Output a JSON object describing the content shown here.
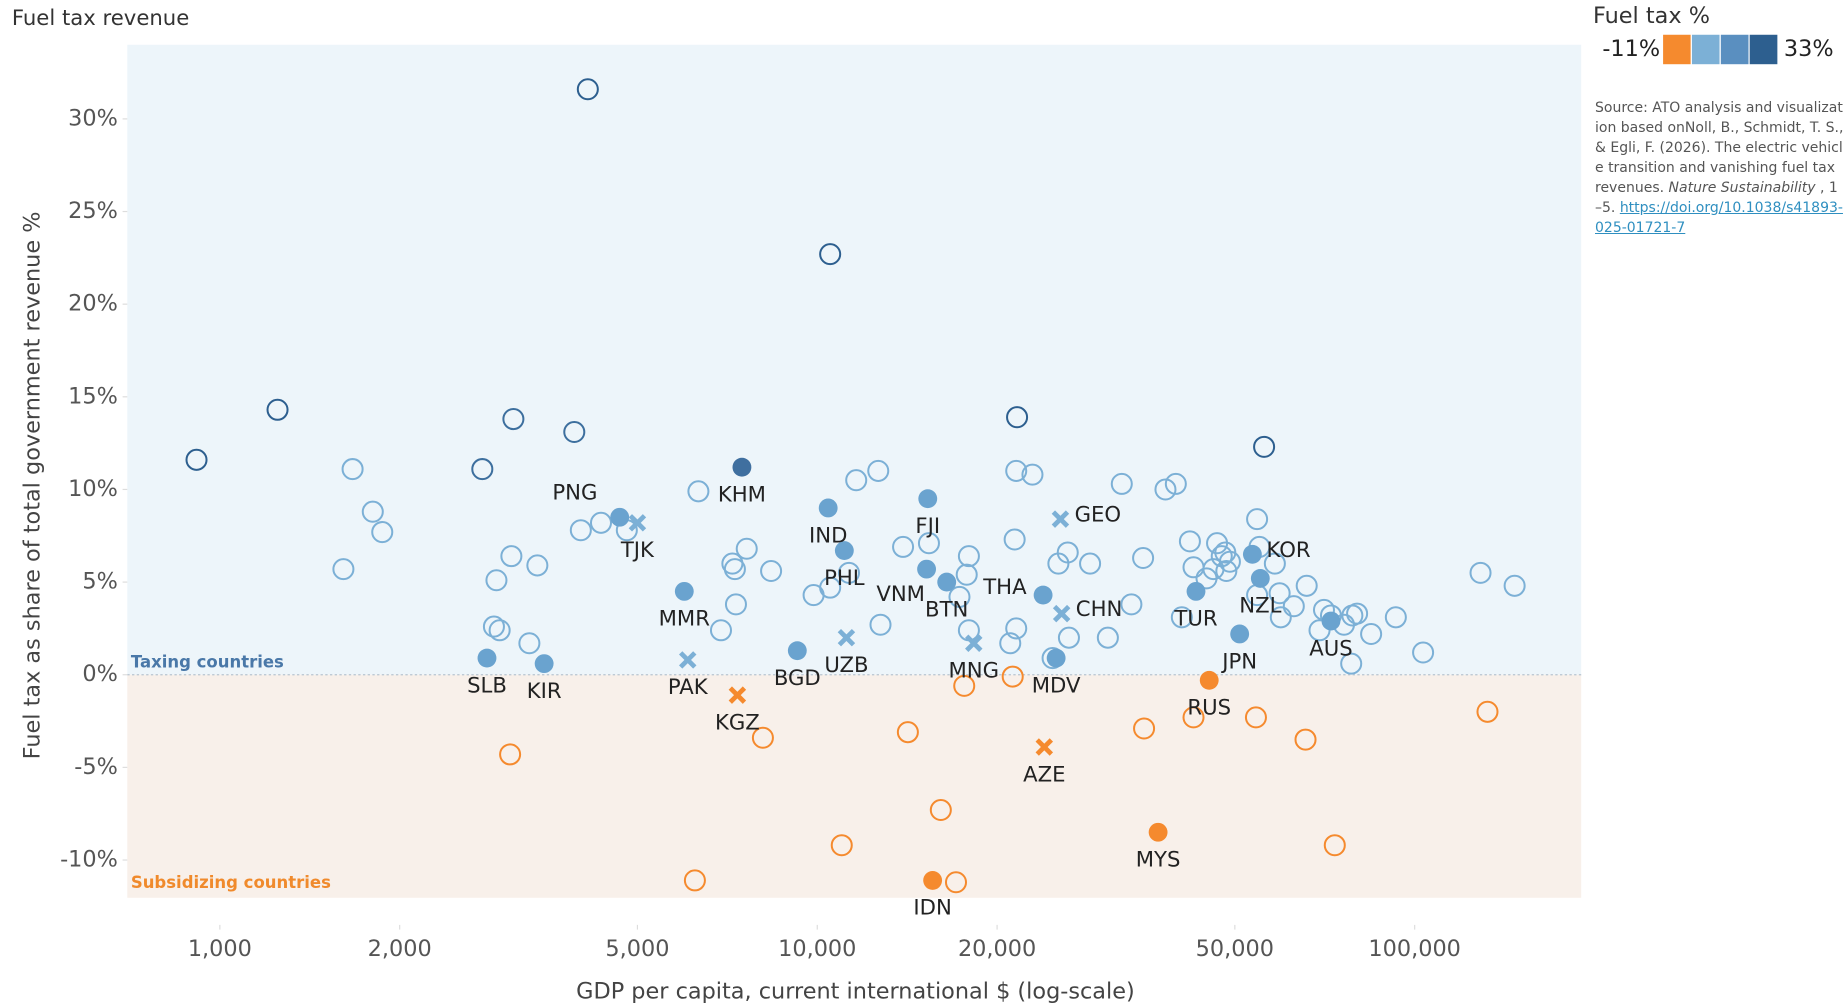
{
  "chart_data": {
    "type": "scatter",
    "title": "Fuel tax revenue",
    "x_label": "GDP per capita, current international $ (log-scale)",
    "y_label": "Fuel tax as share of total government revenue %",
    "xlog": true,
    "xlim": [
      700,
      190000
    ],
    "ylim": [
      -13.5,
      34
    ],
    "xticks": [
      {
        "value": 1000,
        "label": "1,000"
      },
      {
        "value": 2000,
        "label": "2,000"
      },
      {
        "value": 5000,
        "label": "5,000"
      },
      {
        "value": 10000,
        "label": "10,000"
      },
      {
        "value": 20000,
        "label": "20,000"
      },
      {
        "value": 50000,
        "label": "50,000"
      },
      {
        "value": 100000,
        "label": "100,000"
      }
    ],
    "yticks": [
      {
        "value": -10,
        "label": "-10%"
      },
      {
        "value": -5,
        "label": "-5%"
      },
      {
        "value": 0,
        "label": "0%"
      },
      {
        "value": 5,
        "label": "5%"
      },
      {
        "value": 10,
        "label": "10%"
      },
      {
        "value": 15,
        "label": "15%"
      },
      {
        "value": 20,
        "label": "20%"
      },
      {
        "value": 25,
        "label": "25%"
      },
      {
        "value": 30,
        "label": "30%"
      }
    ],
    "annotations": {
      "taxing": "Taxing countries",
      "subsidizing": "Subsidizing countries"
    },
    "region_colors": {
      "taxing": "#edf5fa",
      "subsidizing": "#f8f0ea"
    },
    "color_legend": {
      "title": "Fuel tax %",
      "min": {
        "value": -11,
        "label": "-11%"
      },
      "max": {
        "value": 33,
        "label": "33%"
      },
      "colors": [
        "#f58a2e",
        "#7cb0d6",
        "#5a8fc0",
        "#2d5f8f"
      ]
    },
    "points": [
      {
        "x": 914,
        "y": 11.6,
        "color": "#2d5f8f",
        "marker": "open"
      },
      {
        "x": 1249,
        "y": 14.3,
        "color": "#2d5f8f",
        "marker": "open"
      },
      {
        "x": 4130,
        "y": 31.6,
        "color": "#2d5f8f",
        "marker": "open"
      },
      {
        "x": 10510,
        "y": 22.7,
        "color": "#2d5f8f",
        "marker": "open"
      },
      {
        "x": 21600,
        "y": 13.9,
        "color": "#2d5f8f",
        "marker": "open"
      },
      {
        "x": 55970,
        "y": 12.3,
        "color": "#2d5f8f",
        "marker": "open"
      },
      {
        "x": 2750,
        "y": 11.1,
        "color": "#3d6f9e",
        "marker": "open"
      },
      {
        "x": 3100,
        "y": 13.8,
        "color": "#3d6f9e",
        "marker": "open"
      },
      {
        "x": 3920,
        "y": 13.1,
        "color": "#3d6f9e",
        "marker": "open"
      },
      {
        "x": 1668,
        "y": 11.1,
        "color": "#7cb0d6",
        "marker": "open"
      },
      {
        "x": 1803,
        "y": 8.8,
        "color": "#7cb0d6",
        "marker": "open"
      },
      {
        "x": 1870,
        "y": 7.7,
        "color": "#7cb0d6",
        "marker": "open"
      },
      {
        "x": 1610,
        "y": 5.7,
        "color": "#7cb0d6",
        "marker": "open"
      },
      {
        "x": 2876,
        "y": 2.6,
        "color": "#7cb0d6",
        "marker": "open"
      },
      {
        "x": 2904,
        "y": 5.1,
        "color": "#7cb0d6",
        "marker": "open"
      },
      {
        "x": 3076,
        "y": 6.4,
        "color": "#7cb0d6",
        "marker": "open"
      },
      {
        "x": 2940,
        "y": 2.4,
        "color": "#7cb0d6",
        "marker": "open"
      },
      {
        "x": 3297,
        "y": 1.7,
        "color": "#7cb0d6",
        "marker": "open"
      },
      {
        "x": 3400,
        "y": 5.9,
        "color": "#7cb0d6",
        "marker": "open"
      },
      {
        "x": 4020,
        "y": 7.8,
        "color": "#7cb0d6",
        "marker": "open"
      },
      {
        "x": 4345,
        "y": 8.2,
        "color": "#7cb0d6",
        "marker": "open"
      },
      {
        "x": 4800,
        "y": 7.8,
        "color": "#7cb0d6",
        "marker": "open"
      },
      {
        "x": 6325,
        "y": 9.9,
        "color": "#7cb0d6",
        "marker": "open"
      },
      {
        "x": 7210,
        "y": 6.0,
        "color": "#7cb0d6",
        "marker": "open"
      },
      {
        "x": 7280,
        "y": 5.7,
        "color": "#7cb0d6",
        "marker": "open"
      },
      {
        "x": 7620,
        "y": 6.8,
        "color": "#7cb0d6",
        "marker": "open"
      },
      {
        "x": 7310,
        "y": 3.8,
        "color": "#7cb0d6",
        "marker": "open"
      },
      {
        "x": 6900,
        "y": 2.4,
        "color": "#7cb0d6",
        "marker": "open"
      },
      {
        "x": 8370,
        "y": 5.6,
        "color": "#7cb0d6",
        "marker": "open"
      },
      {
        "x": 9860,
        "y": 4.3,
        "color": "#7cb0d6",
        "marker": "open"
      },
      {
        "x": 10510,
        "y": 4.7,
        "color": "#7cb0d6",
        "marker": "open"
      },
      {
        "x": 11300,
        "y": 5.5,
        "color": "#7cb0d6",
        "marker": "open"
      },
      {
        "x": 11620,
        "y": 10.5,
        "color": "#7cb0d6",
        "marker": "open"
      },
      {
        "x": 12650,
        "y": 11.0,
        "color": "#7cb0d6",
        "marker": "open"
      },
      {
        "x": 12760,
        "y": 2.7,
        "color": "#7cb0d6",
        "marker": "open"
      },
      {
        "x": 13920,
        "y": 6.9,
        "color": "#7cb0d6",
        "marker": "open"
      },
      {
        "x": 15380,
        "y": 7.1,
        "color": "#7cb0d6",
        "marker": "open"
      },
      {
        "x": 17940,
        "y": 6.4,
        "color": "#7cb0d6",
        "marker": "open"
      },
      {
        "x": 17790,
        "y": 5.4,
        "color": "#7cb0d6",
        "marker": "open"
      },
      {
        "x": 17300,
        "y": 4.2,
        "color": "#7cb0d6",
        "marker": "open"
      },
      {
        "x": 17940,
        "y": 2.4,
        "color": "#7cb0d6",
        "marker": "open"
      },
      {
        "x": 21400,
        "y": 7.3,
        "color": "#7cb0d6",
        "marker": "open"
      },
      {
        "x": 21530,
        "y": 11.0,
        "color": "#7cb0d6",
        "marker": "open"
      },
      {
        "x": 22920,
        "y": 10.8,
        "color": "#7cb0d6",
        "marker": "open"
      },
      {
        "x": 21530,
        "y": 2.5,
        "color": "#7cb0d6",
        "marker": "open"
      },
      {
        "x": 21040,
        "y": 1.7,
        "color": "#7cb0d6",
        "marker": "open"
      },
      {
        "x": 24770,
        "y": 0.9,
        "color": "#7cb0d6",
        "marker": "open"
      },
      {
        "x": 26380,
        "y": 2.0,
        "color": "#7cb0d6",
        "marker": "open"
      },
      {
        "x": 26260,
        "y": 6.6,
        "color": "#7cb0d6",
        "marker": "open"
      },
      {
        "x": 25330,
        "y": 6.0,
        "color": "#7cb0d6",
        "marker": "open"
      },
      {
        "x": 28620,
        "y": 6.0,
        "color": "#7cb0d6",
        "marker": "open"
      },
      {
        "x": 30650,
        "y": 2.0,
        "color": "#7cb0d6",
        "marker": "open"
      },
      {
        "x": 32340,
        "y": 10.3,
        "color": "#7cb0d6",
        "marker": "open"
      },
      {
        "x": 33560,
        "y": 3.8,
        "color": "#7cb0d6",
        "marker": "open"
      },
      {
        "x": 35110,
        "y": 6.3,
        "color": "#7cb0d6",
        "marker": "open"
      },
      {
        "x": 38270,
        "y": 10.0,
        "color": "#7cb0d6",
        "marker": "open"
      },
      {
        "x": 39830,
        "y": 10.3,
        "color": "#7cb0d6",
        "marker": "open"
      },
      {
        "x": 40760,
        "y": 3.1,
        "color": "#7cb0d6",
        "marker": "open"
      },
      {
        "x": 42050,
        "y": 7.2,
        "color": "#7cb0d6",
        "marker": "open"
      },
      {
        "x": 42640,
        "y": 5.8,
        "color": "#7cb0d6",
        "marker": "open"
      },
      {
        "x": 44830,
        "y": 5.2,
        "color": "#7cb0d6",
        "marker": "open"
      },
      {
        "x": 46050,
        "y": 5.7,
        "color": "#7cb0d6",
        "marker": "open"
      },
      {
        "x": 46690,
        "y": 7.1,
        "color": "#7cb0d6",
        "marker": "open"
      },
      {
        "x": 47540,
        "y": 6.4,
        "color": "#7cb0d6",
        "marker": "open"
      },
      {
        "x": 48200,
        "y": 6.6,
        "color": "#7cb0d6",
        "marker": "open"
      },
      {
        "x": 48390,
        "y": 5.6,
        "color": "#7cb0d6",
        "marker": "open"
      },
      {
        "x": 49060,
        "y": 6.1,
        "color": "#7cb0d6",
        "marker": "open"
      },
      {
        "x": 54480,
        "y": 8.4,
        "color": "#7cb0d6",
        "marker": "open"
      },
      {
        "x": 54980,
        "y": 6.9,
        "color": "#7cb0d6",
        "marker": "open"
      },
      {
        "x": 54480,
        "y": 4.3,
        "color": "#7cb0d6",
        "marker": "open"
      },
      {
        "x": 58340,
        "y": 6.0,
        "color": "#7cb0d6",
        "marker": "open"
      },
      {
        "x": 59420,
        "y": 4.4,
        "color": "#7cb0d6",
        "marker": "open"
      },
      {
        "x": 59690,
        "y": 3.1,
        "color": "#7cb0d6",
        "marker": "open"
      },
      {
        "x": 62760,
        "y": 3.7,
        "color": "#7cb0d6",
        "marker": "open"
      },
      {
        "x": 65960,
        "y": 4.8,
        "color": "#7cb0d6",
        "marker": "open"
      },
      {
        "x": 69300,
        "y": 2.4,
        "color": "#7cb0d6",
        "marker": "open"
      },
      {
        "x": 70500,
        "y": 3.5,
        "color": "#7cb0d6",
        "marker": "open"
      },
      {
        "x": 72430,
        "y": 3.2,
        "color": "#7cb0d6",
        "marker": "open"
      },
      {
        "x": 76150,
        "y": 2.7,
        "color": "#7cb0d6",
        "marker": "open"
      },
      {
        "x": 78650,
        "y": 3.2,
        "color": "#7cb0d6",
        "marker": "open"
      },
      {
        "x": 80100,
        "y": 3.3,
        "color": "#7cb0d6",
        "marker": "open"
      },
      {
        "x": 78300,
        "y": 0.6,
        "color": "#7cb0d6",
        "marker": "open"
      },
      {
        "x": 84550,
        "y": 2.2,
        "color": "#7cb0d6",
        "marker": "open"
      },
      {
        "x": 93000,
        "y": 3.1,
        "color": "#7cb0d6",
        "marker": "open"
      },
      {
        "x": 103300,
        "y": 1.2,
        "color": "#7cb0d6",
        "marker": "open"
      },
      {
        "x": 128900,
        "y": 5.5,
        "color": "#7cb0d6",
        "marker": "open"
      },
      {
        "x": 147000,
        "y": 4.8,
        "color": "#7cb0d6",
        "marker": "open"
      },
      {
        "x": 2800,
        "y": 0.9,
        "color": "#6aa3cf",
        "marker": "filled",
        "label": "SLB"
      },
      {
        "x": 3490,
        "y": 0.6,
        "color": "#6aa3cf",
        "marker": "filled",
        "label": "KIR"
      },
      {
        "x": 5990,
        "y": 4.5,
        "color": "#6aa3cf",
        "marker": "filled",
        "label": "MMR"
      },
      {
        "x": 4670,
        "y": 8.5,
        "color": "#6aa3cf",
        "marker": "filled",
        "label": "PNG",
        "label_side": "above-left"
      },
      {
        "x": 7480,
        "y": 11.2,
        "color": "#3f6f9f",
        "marker": "filled",
        "label": "KHM"
      },
      {
        "x": 10430,
        "y": 9.0,
        "color": "#6aa3cf",
        "marker": "filled",
        "label": "IND"
      },
      {
        "x": 11100,
        "y": 6.7,
        "color": "#6aa3cf",
        "marker": "filled",
        "label": "PHL"
      },
      {
        "x": 9260,
        "y": 1.3,
        "color": "#6aa3cf",
        "marker": "filled",
        "label": "BGD"
      },
      {
        "x": 15310,
        "y": 9.5,
        "color": "#6aa3cf",
        "marker": "filled",
        "label": "FJI"
      },
      {
        "x": 15240,
        "y": 5.7,
        "color": "#6aa3cf",
        "marker": "filled",
        "label": "VNM",
        "label_side": "below-left"
      },
      {
        "x": 16470,
        "y": 5.0,
        "color": "#6aa3cf",
        "marker": "filled",
        "label": "BTN"
      },
      {
        "x": 23880,
        "y": 4.3,
        "color": "#6aa3cf",
        "marker": "filled",
        "label": "THA",
        "label_side": "left"
      },
      {
        "x": 25110,
        "y": 0.9,
        "color": "#6aa3cf",
        "marker": "filled",
        "label": "MDV"
      },
      {
        "x": 43050,
        "y": 4.5,
        "color": "#6aa3cf",
        "marker": "filled",
        "label": "TUR"
      },
      {
        "x": 50940,
        "y": 2.2,
        "color": "#6aa3cf",
        "marker": "filled",
        "label": "JPN"
      },
      {
        "x": 53500,
        "y": 6.5,
        "color": "#6aa3cf",
        "marker": "filled",
        "label": "KOR",
        "label_side": "right"
      },
      {
        "x": 55160,
        "y": 5.2,
        "color": "#6aa3cf",
        "marker": "filled",
        "label": "NZL"
      },
      {
        "x": 72430,
        "y": 2.9,
        "color": "#6aa3cf",
        "marker": "filled",
        "label": "AUS"
      },
      {
        "x": 5000,
        "y": 8.2,
        "color": "#7cb0d6",
        "marker": "cross",
        "label": "TJK"
      },
      {
        "x": 6070,
        "y": 0.8,
        "color": "#7cb0d6",
        "marker": "cross",
        "label": "PAK"
      },
      {
        "x": 11190,
        "y": 2.0,
        "color": "#7cb0d6",
        "marker": "cross",
        "label": "UZB"
      },
      {
        "x": 18280,
        "y": 1.7,
        "color": "#7cb0d6",
        "marker": "cross",
        "label": "MNG"
      },
      {
        "x": 25530,
        "y": 8.4,
        "color": "#7cb0d6",
        "marker": "cross",
        "label": "GEO",
        "label_side": "right"
      },
      {
        "x": 25650,
        "y": 3.3,
        "color": "#7cb0d6",
        "marker": "cross",
        "label": "CHN",
        "label_side": "right"
      },
      {
        "x": 3061,
        "y": -4.3,
        "color": "#f58a2e",
        "marker": "open"
      },
      {
        "x": 6240,
        "y": -11.1,
        "color": "#f58a2e",
        "marker": "open"
      },
      {
        "x": 8110,
        "y": -3.4,
        "color": "#f58a2e",
        "marker": "open"
      },
      {
        "x": 10990,
        "y": -9.2,
        "color": "#f58a2e",
        "marker": "open"
      },
      {
        "x": 14180,
        "y": -3.1,
        "color": "#f58a2e",
        "marker": "open"
      },
      {
        "x": 16100,
        "y": -7.3,
        "color": "#f58a2e",
        "marker": "open"
      },
      {
        "x": 17070,
        "y": -11.2,
        "color": "#f58a2e",
        "marker": "open"
      },
      {
        "x": 17620,
        "y": -0.6,
        "color": "#f58a2e",
        "marker": "open"
      },
      {
        "x": 21240,
        "y": -0.1,
        "color": "#f58a2e",
        "marker": "open"
      },
      {
        "x": 35240,
        "y": -2.9,
        "color": "#f58a2e",
        "marker": "open"
      },
      {
        "x": 42640,
        "y": -2.3,
        "color": "#f58a2e",
        "marker": "open"
      },
      {
        "x": 54240,
        "y": -2.3,
        "color": "#f58a2e",
        "marker": "open"
      },
      {
        "x": 65660,
        "y": -3.5,
        "color": "#f58a2e",
        "marker": "open"
      },
      {
        "x": 73500,
        "y": -9.2,
        "color": "#f58a2e",
        "marker": "open"
      },
      {
        "x": 132400,
        "y": -2.0,
        "color": "#f58a2e",
        "marker": "open"
      },
      {
        "x": 45300,
        "y": -0.3,
        "color": "#f58a2e",
        "marker": "filled",
        "label": "RUS"
      },
      {
        "x": 37200,
        "y": -8.5,
        "color": "#f58a2e",
        "marker": "filled",
        "label": "MYS"
      },
      {
        "x": 15600,
        "y": -11.1,
        "color": "#f58a2e",
        "marker": "filled",
        "label": "IDN"
      },
      {
        "x": 7350,
        "y": -1.1,
        "color": "#f58a2e",
        "marker": "cross",
        "label": "KGZ"
      },
      {
        "x": 23990,
        "y": -3.9,
        "color": "#f58a2e",
        "marker": "cross",
        "label": "AZE"
      }
    ]
  },
  "source": {
    "text": "Source: ATO analysis and visualization based onNoll, B., Schmidt, T. S., & Egli, F. (2026). The electric vehicle transition and vanishing fuel tax revenues.",
    "journal": "Nature Sustainability",
    "pages": " , 1–5.",
    "link": "https://doi.org/10.1038/s41893-025-01721-7"
  }
}
